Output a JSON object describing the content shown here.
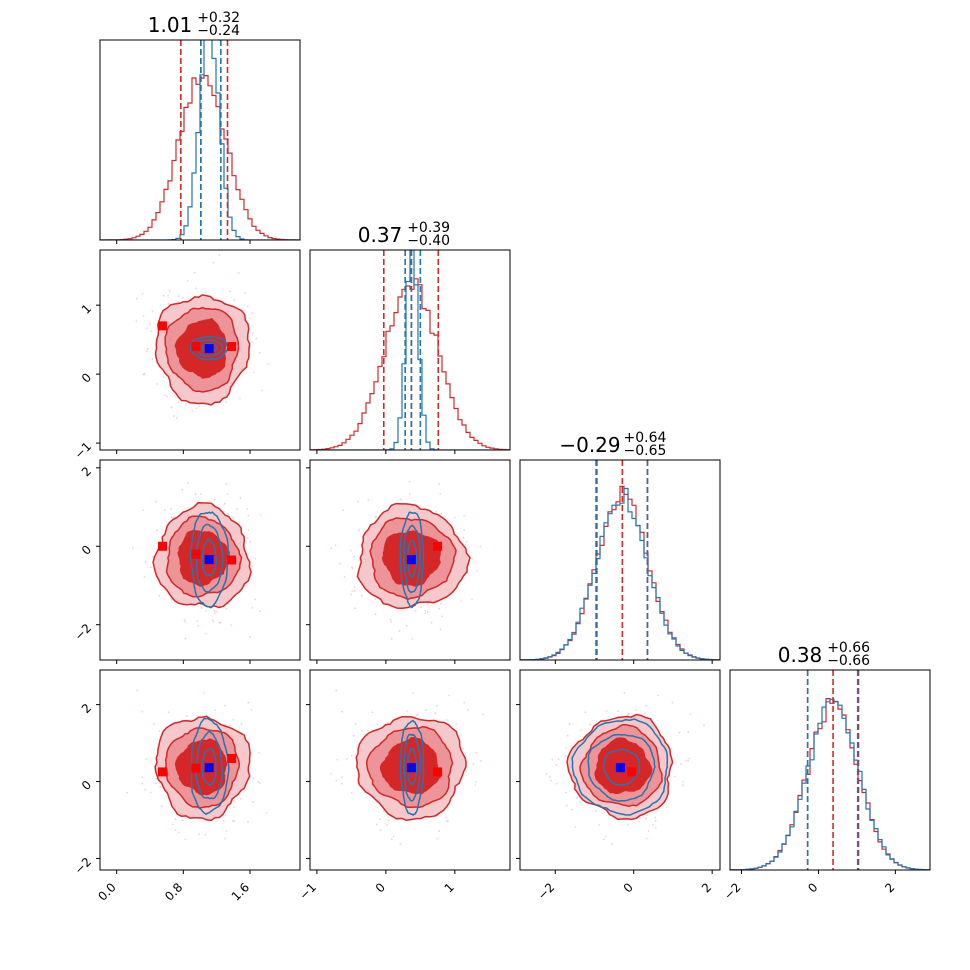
{
  "chart_data": {
    "type": "corner",
    "parameters": [
      {
        "title": {
          "value": "1.01",
          "upper": "+0.32",
          "lower": "−0.24"
        },
        "range": [
          -0.2,
          2.2
        ],
        "ticks": [
          0.0,
          0.8,
          1.6
        ],
        "tick_labels": [
          "0.0",
          "0.8",
          "1.6"
        ],
        "red_quantiles": [
          0.77,
          1.01,
          1.33
        ],
        "blue_quantiles": [
          1.01,
          1.25
        ],
        "red_marker": 1.01,
        "blue_marker": 1.11
      },
      {
        "title": {
          "value": "0.37",
          "upper": "+0.39",
          "lower": "−0.40"
        },
        "range": [
          -1.1,
          1.8
        ],
        "ticks": [
          -1,
          0,
          1
        ],
        "tick_labels": [
          "−1",
          "0",
          "1"
        ],
        "red_quantiles": [
          -0.03,
          0.37,
          0.76
        ],
        "blue_quantiles": [
          0.28,
          0.37,
          0.5
        ],
        "red_marker": 0.37,
        "blue_marker": 0.37
      },
      {
        "title": {
          "value": "−0.29",
          "upper": "+0.64",
          "lower": "−0.65"
        },
        "range": [
          -2.9,
          2.2
        ],
        "ticks": [
          -2,
          0,
          2
        ],
        "tick_labels": [
          "−2",
          "0",
          "2"
        ],
        "red_quantiles": [
          -0.94,
          -0.29,
          0.35
        ],
        "blue_quantiles": [
          -0.96,
          0.35
        ],
        "red_marker": -0.29,
        "blue_marker": -0.34
      },
      {
        "title": {
          "value": "0.38",
          "upper": "+0.66",
          "lower": "−0.66"
        },
        "range": [
          -2.3,
          2.9
        ],
        "ticks": [
          -2,
          0,
          2
        ],
        "tick_labels": [
          "−2",
          "0",
          "2"
        ],
        "red_quantiles": [
          -0.28,
          0.38,
          1.04
        ],
        "blue_quantiles": [
          -0.28,
          1.02
        ],
        "red_marker": 0.38,
        "blue_marker": 0.36
      }
    ],
    "series": [
      {
        "color": "#d62728",
        "stds": [
          0.28,
          0.39,
          0.65,
          0.66
        ],
        "means": [
          1.03,
          0.37,
          -0.29,
          0.38
        ]
      },
      {
        "color": "#1f77b4",
        "stds": [
          0.12,
          0.09,
          0.65,
          0.66
        ],
        "means": [
          1.11,
          0.38,
          -0.31,
          0.38
        ]
      }
    ],
    "extra_red_markers": [
      {
        "pair": [
          0,
          1
        ],
        "points": [
          [
            0.55,
            0.7
          ],
          [
            1.38,
            0.4
          ],
          [
            0.95,
            0.4
          ]
        ]
      },
      {
        "pair": [
          0,
          2
        ],
        "points": [
          [
            0.55,
            0.0
          ],
          [
            1.38,
            -0.35
          ],
          [
            0.95,
            -0.2
          ]
        ]
      },
      {
        "pair": [
          1,
          2
        ],
        "points": [
          [
            0.75,
            0.0
          ]
        ]
      },
      {
        "pair": [
          0,
          3
        ],
        "points": [
          [
            0.55,
            0.25
          ],
          [
            1.38,
            0.6
          ],
          [
            0.95,
            0.35
          ]
        ]
      },
      {
        "pair": [
          1,
          3
        ],
        "points": [
          [
            0.75,
            0.25
          ]
        ]
      },
      {
        "pair": [
          2,
          3
        ],
        "points": [
          [
            -0.05,
            0.25
          ]
        ]
      }
    ],
    "colors": {
      "red": "#d62728",
      "blue": "#1f77b4",
      "blue_marker": "#0000ff",
      "red_marker": "#ff0000"
    },
    "grid": false
  }
}
